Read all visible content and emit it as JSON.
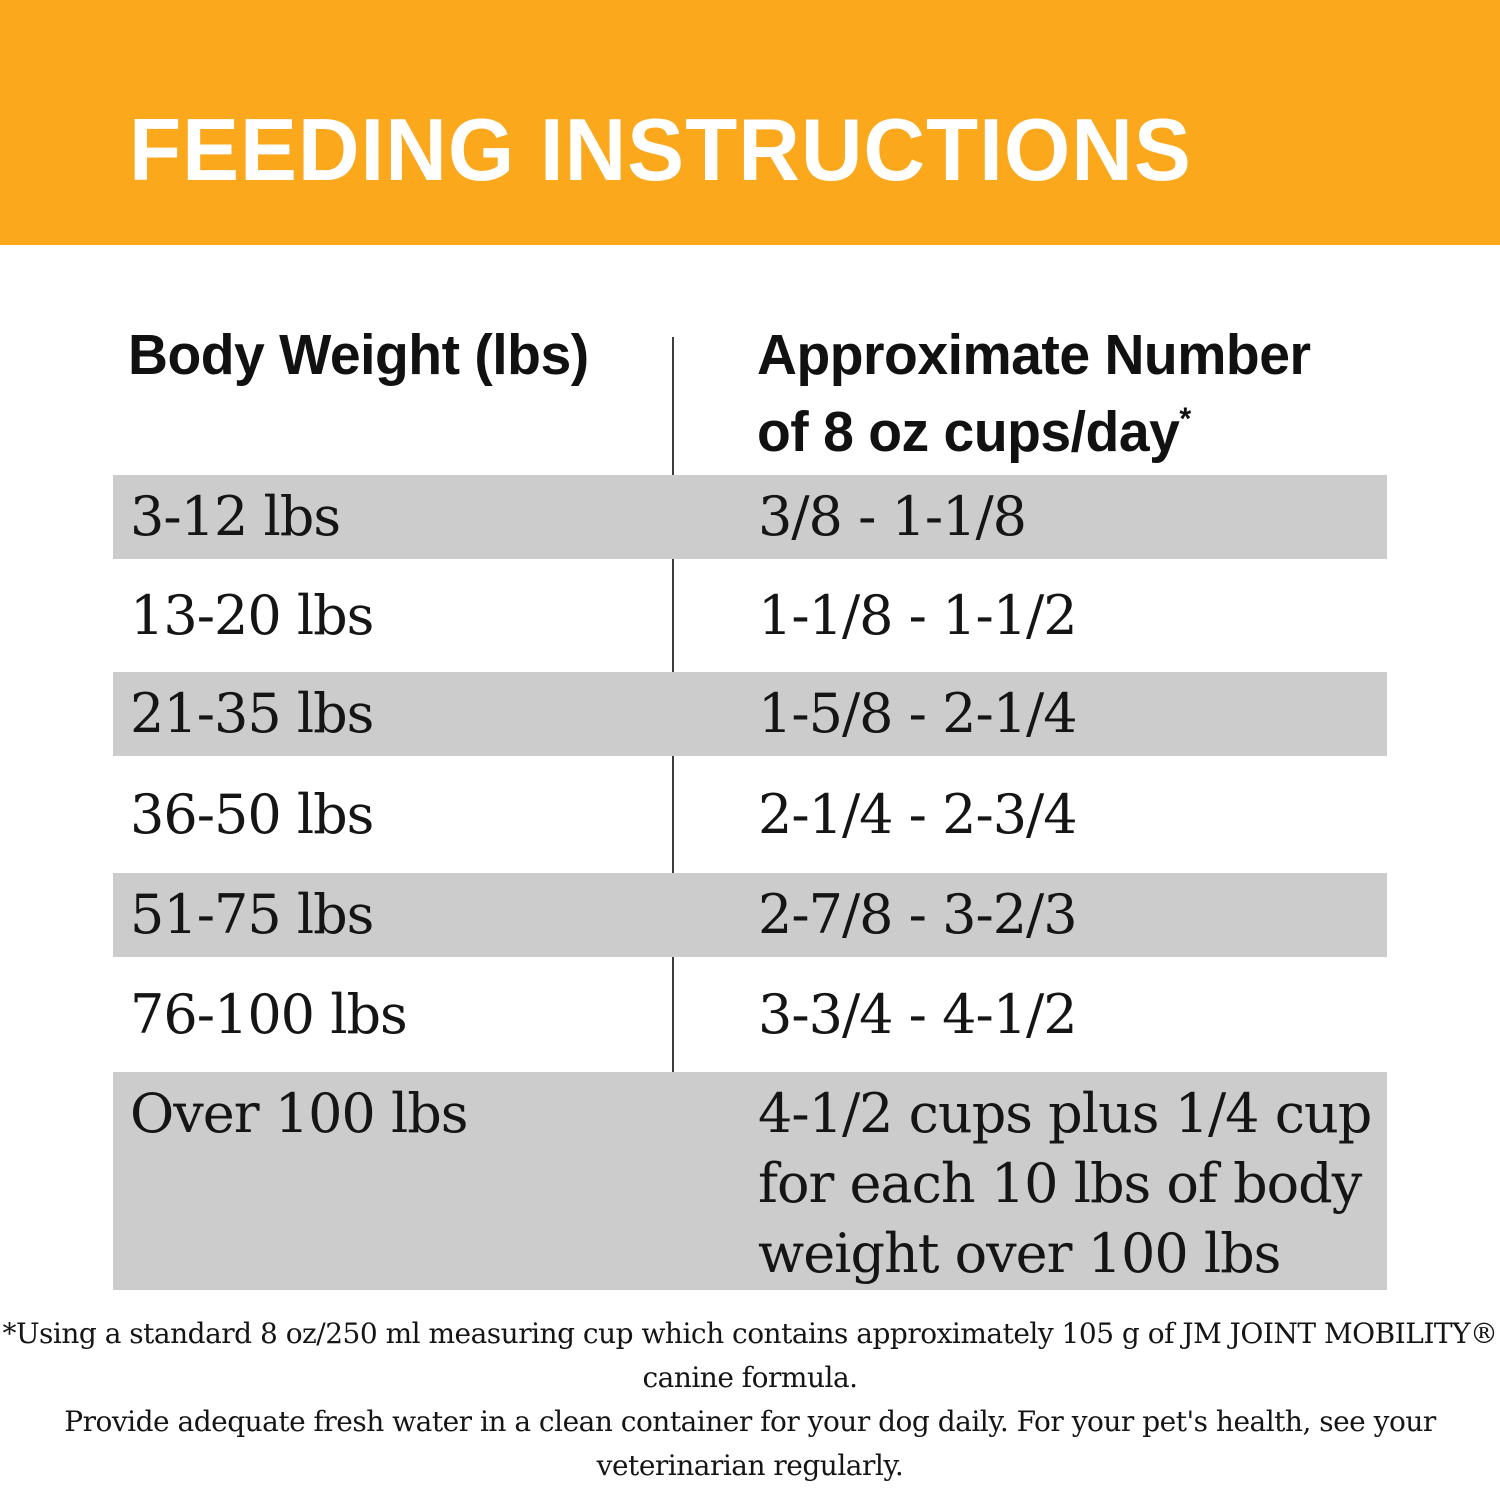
{
  "banner": {
    "title": "FEEDING INSTRUCTIONS"
  },
  "table": {
    "header": {
      "body_weight": "Body Weight (lbs)",
      "cups_line1": "Approximate Number",
      "cups_line2": "of 8 oz cups/day",
      "asterisk": "*"
    },
    "rows": [
      {
        "weight": "3-12 lbs",
        "cups": "3/8 - 1-1/8"
      },
      {
        "weight": "13-20 lbs",
        "cups": "1-1/8 - 1-1/2"
      },
      {
        "weight": "21-35 lbs",
        "cups": "1-5/8 - 2-1/4"
      },
      {
        "weight": "36-50 lbs",
        "cups": "2-1/4 - 2-3/4"
      },
      {
        "weight": "51-75 lbs",
        "cups": "2-7/8 - 3-2/3"
      },
      {
        "weight": "76-100 lbs",
        "cups": "3-3/4 - 4-1/2"
      },
      {
        "weight": "Over 100 lbs",
        "cups": "4-1/2 cups plus 1/4 cup\nfor each 10 lbs of body\nweight over 100 lbs"
      }
    ]
  },
  "footnote": {
    "line1": "*Using a standard 8 oz/250 ml measuring cup which contains approximately 105 g of JM JOINT MOBILITY® canine formula.",
    "line2": "Provide adequate fresh water in a clean container for your dog daily. For your pet's health, see your veterinarian regularly."
  },
  "colors": {
    "banner_orange": "#FCA81D",
    "row_shade_gray": "#CCCCCC",
    "title_white": "#FFFFFF",
    "divider_dark": "#3D3D3D",
    "text_black": "#111111"
  }
}
